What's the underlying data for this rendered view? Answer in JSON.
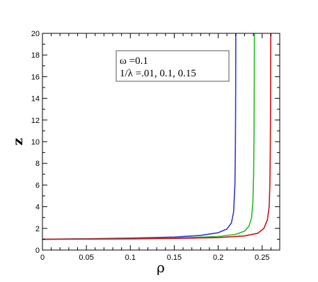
{
  "chart_data": {
    "type": "line",
    "title": "",
    "xlabel": "ρ",
    "ylabel": "z",
    "xlim": [
      0,
      0.27
    ],
    "ylim": [
      0,
      20
    ],
    "x_ticks": [
      0,
      0.05,
      0.1,
      0.15,
      0.2,
      0.25
    ],
    "x_tick_labels": [
      "0",
      "0.05",
      "0.1",
      "0.15",
      "0.2",
      "0.25"
    ],
    "y_ticks": [
      0,
      2,
      4,
      6,
      8,
      10,
      12,
      14,
      16,
      18,
      20
    ],
    "y_tick_labels": [
      "0",
      "2",
      "4",
      "6",
      "8",
      "10",
      "12",
      "14",
      "16",
      "18",
      "20"
    ],
    "grid": false,
    "annotation": {
      "line1": "ω =0.1",
      "line2": "1/λ =.01, 0.1, 0.15"
    },
    "series": [
      {
        "color": "#3333dd",
        "x": [
          0,
          0.05,
          0.1,
          0.15,
          0.18,
          0.2,
          0.21,
          0.215,
          0.2175,
          0.219,
          0.2195,
          0.2198,
          0.2199,
          0.22
        ],
        "y": [
          1.0,
          1.04,
          1.1,
          1.2,
          1.35,
          1.6,
          1.95,
          2.5,
          3.5,
          6.0,
          9.0,
          13.0,
          16.0,
          20.0
        ]
      },
      {
        "color": "#22bb22",
        "x": [
          0,
          0.05,
          0.1,
          0.15,
          0.2,
          0.22,
          0.23,
          0.235,
          0.238,
          0.2395,
          0.2403,
          0.2408,
          0.241,
          0.2412
        ],
        "y": [
          1.0,
          1.02,
          1.05,
          1.1,
          1.25,
          1.45,
          1.75,
          2.2,
          3.0,
          4.5,
          7.0,
          11.0,
          15.0,
          20.0
        ]
      },
      {
        "color": "#cc1111",
        "x": [
          0,
          0.05,
          0.1,
          0.15,
          0.2,
          0.23,
          0.245,
          0.252,
          0.256,
          0.258,
          0.2588,
          0.2593,
          0.2596,
          0.2598
        ],
        "y": [
          1.0,
          1.01,
          1.03,
          1.07,
          1.15,
          1.3,
          1.55,
          2.0,
          2.8,
          4.0,
          6.0,
          9.5,
          14.0,
          20.0
        ]
      }
    ]
  }
}
